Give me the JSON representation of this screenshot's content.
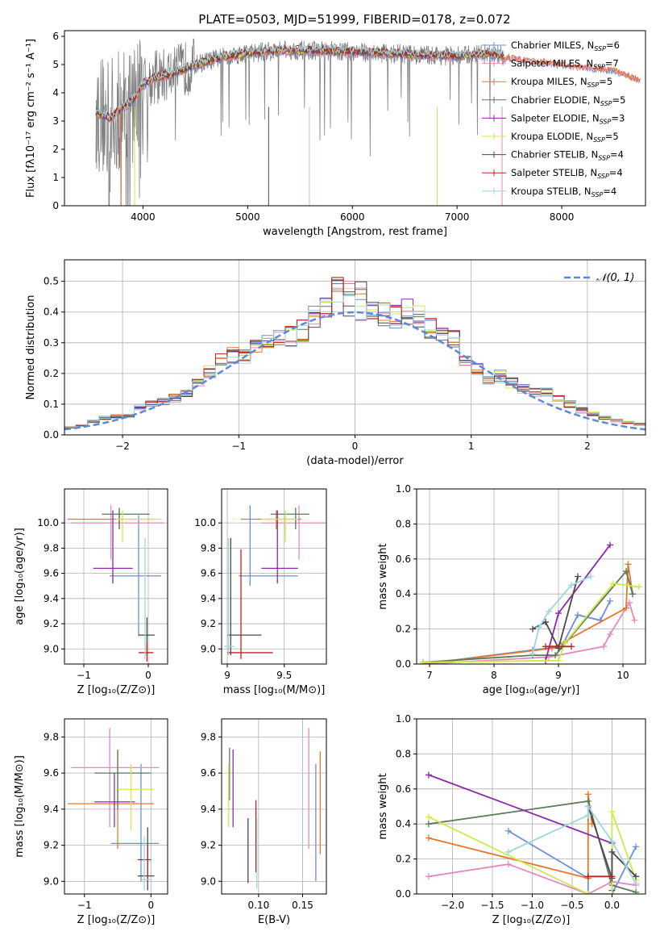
{
  "figure": {
    "title": "PLATE=0503, MJD=51999, FIBERID=0178, z=0.072"
  },
  "colors": {
    "Chabrier MILES": "#6a8fdc",
    "Salpeter MILES": "#e38bbd",
    "Kroupa MILES": "#e8772a",
    "Chabrier ELODIE": "#5a7a5a",
    "Salpeter ELODIE": "#8b2aa8",
    "Kroupa ELODIE": "#cfe84a",
    "Chabrier STELIB": "#4a4a4a",
    "Salpeter STELIB": "#b82424",
    "Kroupa STELIB": "#9fd6dc",
    "data": "#808080",
    "normal_curve": "#5b8bd6"
  },
  "chart_data": [
    {
      "id": "spectrum",
      "type": "line",
      "title": "PLATE=0503, MJD=51999, FIBERID=0178, z=0.072",
      "xlabel": "wavelength [Angstrom, rest frame]",
      "ylabel": "Flux [fλ10⁻¹⁷ erg cm⁻² s⁻¹ A⁻¹]",
      "xlim": [
        3250,
        8800
      ],
      "ylim": [
        0,
        6.2
      ],
      "xticks": [
        4000,
        5000,
        6000,
        7000,
        8000
      ],
      "yticks": [
        0,
        1,
        2,
        3,
        4,
        5,
        6
      ],
      "grid": false,
      "legend_position": "right",
      "legend": [
        {
          "label": "Chabrier MILES, N",
          "sub": "SSP",
          "tail": "=6",
          "key": "Chabrier MILES"
        },
        {
          "label": "Salpeter MILES, N",
          "sub": "SSP",
          "tail": "=7",
          "key": "Salpeter MILES"
        },
        {
          "label": "Kroupa MILES, N",
          "sub": "SSP",
          "tail": "=5",
          "key": "Kroupa MILES"
        },
        {
          "label": "Chabrier ELODIE, N",
          "sub": "SSP",
          "tail": "=5",
          "key": "Chabrier ELODIE"
        },
        {
          "label": "Salpeter ELODIE, N",
          "sub": "SSP",
          "tail": "=3",
          "key": "Salpeter ELODIE"
        },
        {
          "label": "Kroupa ELODIE, N",
          "sub": "SSP",
          "tail": "=5",
          "key": "Kroupa ELODIE"
        },
        {
          "label": "Chabrier STELIB, N",
          "sub": "SSP",
          "tail": "=4",
          "key": "Chabrier STELIB"
        },
        {
          "label": "Salpeter STELIB, N",
          "sub": "SSP",
          "tail": "=4",
          "key": "Salpeter STELIB"
        },
        {
          "label": "Kroupa STELIB, N",
          "sub": "SSP",
          "tail": "=4",
          "key": "Kroupa STELIB"
        }
      ],
      "continuum": [
        [
          3550,
          3.3
        ],
        [
          3700,
          3.1
        ],
        [
          3800,
          3.5
        ],
        [
          3900,
          3.7
        ],
        [
          4000,
          4.3
        ],
        [
          4100,
          4.5
        ],
        [
          4300,
          4.7
        ],
        [
          4500,
          5.0
        ],
        [
          4800,
          5.3
        ],
        [
          5000,
          5.4
        ],
        [
          5300,
          5.5
        ],
        [
          5600,
          5.5
        ],
        [
          6000,
          5.45
        ],
        [
          6300,
          5.4
        ],
        [
          6600,
          5.35
        ],
        [
          7000,
          5.3
        ],
        [
          7300,
          5.4
        ],
        [
          7450,
          5.3
        ]
      ],
      "model_continuum": [
        [
          7450,
          5.3
        ],
        [
          7800,
          5.15
        ],
        [
          8200,
          4.95
        ],
        [
          8500,
          4.85
        ],
        [
          8750,
          4.5
        ]
      ]
    },
    {
      "id": "residuals",
      "type": "line",
      "xlabel": "(data-model)/error",
      "ylabel": "Normed distribution",
      "xlim": [
        -2.5,
        2.5
      ],
      "ylim": [
        0,
        0.57
      ],
      "xticks": [
        -2,
        -1,
        0,
        1,
        2
      ],
      "yticks": [
        0.0,
        0.1,
        0.2,
        0.3,
        0.4,
        0.5
      ],
      "grid": true,
      "legend_position": "upper right",
      "legend_label": "𝒩(0, 1)",
      "bin_width": 0.1,
      "hist_centers": [
        -2.45,
        -2.35,
        -2.25,
        -2.15,
        -2.05,
        -1.95,
        -1.85,
        -1.75,
        -1.65,
        -1.55,
        -1.45,
        -1.35,
        -1.25,
        -1.15,
        -1.05,
        -0.95,
        -0.85,
        -0.75,
        -0.65,
        -0.55,
        -0.45,
        -0.35,
        -0.25,
        -0.15,
        -0.05,
        0.05,
        0.15,
        0.25,
        0.35,
        0.45,
        0.55,
        0.65,
        0.75,
        0.85,
        0.95,
        1.05,
        1.15,
        1.25,
        1.35,
        1.45,
        1.55,
        1.65,
        1.75,
        1.85,
        1.95,
        2.05,
        2.15,
        2.25,
        2.35,
        2.45
      ],
      "hist_mean": [
        0.025,
        0.03,
        0.045,
        0.055,
        0.06,
        0.065,
        0.09,
        0.1,
        0.11,
        0.12,
        0.14,
        0.17,
        0.21,
        0.24,
        0.26,
        0.25,
        0.28,
        0.3,
        0.31,
        0.32,
        0.34,
        0.38,
        0.42,
        0.46,
        0.45,
        0.44,
        0.4,
        0.39,
        0.39,
        0.4,
        0.38,
        0.35,
        0.32,
        0.31,
        0.25,
        0.22,
        0.18,
        0.19,
        0.17,
        0.15,
        0.14,
        0.14,
        0.12,
        0.1,
        0.08,
        0.07,
        0.055,
        0.045,
        0.04,
        0.035
      ]
    },
    {
      "id": "age-vs-Z",
      "type": "scatter",
      "xlabel": "Z [log₁₀(Z/Z⊙)]",
      "ylabel": "age  [log₁₀(age/yr)]",
      "xlim": [
        -1.3,
        0.3
      ],
      "ylim": [
        8.88,
        10.27
      ],
      "xticks": [
        -1,
        0
      ],
      "yticks": [
        9.0,
        9.2,
        9.4,
        9.6,
        9.8,
        10.0
      ],
      "grid": true,
      "points": [
        {
          "key": "Chabrier MILES",
          "x": -0.15,
          "y": 9.58,
          "xerr": [
            0.0,
            0.0
          ],
          "yerr": [
            0.48,
            0.48
          ],
          "xl": -0.6,
          "xr": 0.2
        },
        {
          "key": "Salpeter MILES",
          "x": -0.58,
          "y": 10.0,
          "xl": -1.2,
          "xr": 0.25,
          "yl": 9.71,
          "yh": 10.14
        },
        {
          "key": "Kroupa MILES",
          "x": -0.45,
          "y": 10.03,
          "xl": -1.25,
          "xr": 0.1,
          "yl": 9.95,
          "yh": 10.1
        },
        {
          "key": "Chabrier ELODIE",
          "x": -0.45,
          "y": 10.07,
          "xl": -0.72,
          "xr": 0.02,
          "yl": 9.95,
          "yh": 10.12
        },
        {
          "key": "Salpeter ELODIE",
          "x": -0.55,
          "y": 9.64,
          "xl": -0.85,
          "xr": -0.24,
          "yl": 9.52,
          "yh": 10.1
        },
        {
          "key": "Kroupa ELODIE",
          "x": -0.4,
          "y": 10.03,
          "xl": -0.5,
          "xr": 0.2,
          "yl": 9.85,
          "yh": 10.1
        },
        {
          "key": "Chabrier STELIB",
          "x": -0.02,
          "y": 9.11,
          "xl": -0.15,
          "xr": 0.1,
          "yl": 8.95,
          "yh": 9.25
        },
        {
          "key": "Salpeter STELIB",
          "x": -0.02,
          "y": 8.97,
          "xl": -0.15,
          "xr": 0.08,
          "yl": 8.9,
          "yh": 9.05
        },
        {
          "key": "Kroupa STELIB",
          "x": -0.05,
          "y": 9.58,
          "xl": -0.07,
          "xr": -0.03,
          "yl": 8.92,
          "yh": 9.88
        }
      ]
    },
    {
      "id": "age-vs-mass",
      "type": "scatter",
      "xlabel": "mass [log₁₀(M/M⊙)]",
      "xlim": [
        8.95,
        9.87
      ],
      "ylim": [
        8.88,
        10.27
      ],
      "xticks": [
        9.0,
        9.5
      ],
      "yticks": [
        9.0,
        9.2,
        9.4,
        9.6,
        9.8,
        10.0
      ],
      "grid": true,
      "points": [
        {
          "key": "Chabrier MILES",
          "x": 9.2,
          "y": 9.58,
          "xl": 9.1,
          "xr": 9.62,
          "yl": 9.5,
          "yh": 10.14
        },
        {
          "key": "Salpeter MILES",
          "x": 9.63,
          "y": 10.0,
          "xl": 9.3,
          "xr": 9.9,
          "yl": 9.71,
          "yh": 10.14
        },
        {
          "key": "Kroupa MILES",
          "x": 9.43,
          "y": 10.03,
          "xl": 9.12,
          "xr": 9.65,
          "yl": 9.95,
          "yh": 10.1
        },
        {
          "key": "Chabrier ELODIE",
          "x": 9.6,
          "y": 10.07,
          "xl": 9.38,
          "xr": 9.72,
          "yl": 9.95,
          "yh": 10.12
        },
        {
          "key": "Salpeter ELODIE",
          "x": 9.44,
          "y": 9.64,
          "xl": 9.3,
          "xr": 9.62,
          "yl": 9.52,
          "yh": 10.1
        },
        {
          "key": "Kroupa ELODIE",
          "x": 9.51,
          "y": 10.03,
          "xl": 9.3,
          "xr": 9.62,
          "yl": 9.85,
          "yh": 10.1
        },
        {
          "key": "Chabrier STELIB",
          "x": 9.03,
          "y": 9.11,
          "xl": 9.0,
          "xr": 9.3,
          "yl": 8.95,
          "yh": 9.88
        },
        {
          "key": "Salpeter STELIB",
          "x": 9.12,
          "y": 8.97,
          "xl": 9.0,
          "xr": 9.4,
          "yl": 8.92,
          "yh": 9.79
        },
        {
          "key": "Kroupa STELIB",
          "x": 9.01,
          "y": 9.02,
          "xl": 8.97,
          "xr": 9.06,
          "yl": 8.95,
          "yh": 9.88
        }
      ]
    },
    {
      "id": "massweight-vs-age",
      "type": "line",
      "xlabel": "age  [log₁₀(age/yr)]",
      "ylabel": "mass weight",
      "xlim": [
        6.8,
        10.35
      ],
      "ylim": [
        0,
        1.0
      ],
      "xticks": [
        7,
        8,
        9,
        10
      ],
      "yticks": [
        0.0,
        0.2,
        0.4,
        0.6,
        0.8,
        1.0
      ],
      "grid": true,
      "series": [
        {
          "key": "Chabrier MILES",
          "x": [
            6.9,
            8.6,
            9.05,
            9.3,
            9.65,
            9.8
          ],
          "y": [
            0.0,
            0.08,
            0.1,
            0.28,
            0.25,
            0.36
          ]
        },
        {
          "key": "Salpeter MILES",
          "x": [
            6.9,
            8.85,
            9.7,
            9.8,
            10.1,
            10.18
          ],
          "y": [
            0.0,
            0.04,
            0.1,
            0.17,
            0.35,
            0.25
          ]
        },
        {
          "key": "Kroupa MILES",
          "x": [
            6.9,
            8.9,
            10.05,
            10.08,
            10.15
          ],
          "y": [
            0.0,
            0.09,
            0.32,
            0.57,
            0.4
          ]
        },
        {
          "key": "Chabrier ELODIE",
          "x": [
            6.9,
            8.6,
            8.95,
            10.05,
            10.15
          ],
          "y": [
            0.01,
            0.05,
            0.05,
            0.53,
            0.4
          ]
        },
        {
          "key": "Salpeter ELODIE",
          "x": [
            8.8,
            9.0,
            9.8
          ],
          "y": [
            0.02,
            0.29,
            0.68
          ]
        },
        {
          "key": "Kroupa ELODIE",
          "x": [
            6.9,
            9.0,
            9.1,
            9.85,
            10.25
          ],
          "y": [
            0.01,
            0.02,
            0.12,
            0.46,
            0.44
          ]
        },
        {
          "key": "Chabrier STELIB",
          "x": [
            8.6,
            8.8,
            9.0,
            9.3
          ],
          "y": [
            0.2,
            0.24,
            0.09,
            0.5
          ]
        },
        {
          "key": "Salpeter STELIB",
          "x": [
            8.8,
            9.2
          ],
          "y": [
            0.1,
            0.1
          ]
        },
        {
          "key": "Kroupa STELIB",
          "x": [
            8.6,
            8.7,
            8.85,
            9.2,
            9.5
          ],
          "y": [
            0.06,
            0.21,
            0.3,
            0.45,
            0.5
          ]
        }
      ]
    },
    {
      "id": "mass-vs-Z",
      "type": "scatter",
      "xlabel": "Z [log₁₀(Z/Z⊙)]",
      "ylabel": "mass [log₁₀(M/M⊙)]",
      "xlim": [
        -1.3,
        0.25
      ],
      "ylim": [
        8.93,
        9.9
      ],
      "xticks": [
        -1,
        0
      ],
      "yticks": [
        9.0,
        9.2,
        9.4,
        9.6,
        9.8
      ],
      "grid": true,
      "points": [
        {
          "key": "Chabrier MILES",
          "x": -0.15,
          "y": 9.21,
          "xl": -0.6,
          "xr": 0.12,
          "yl": 9.0,
          "yh": 9.65
        },
        {
          "key": "Salpeter MILES",
          "x": -0.62,
          "y": 9.63,
          "xl": -1.2,
          "xr": 0.12,
          "yl": 9.3,
          "yh": 9.85
        },
        {
          "key": "Kroupa MILES",
          "x": -0.5,
          "y": 9.43,
          "xl": -1.25,
          "xr": 0.04,
          "yl": 9.18,
          "yh": 9.72
        },
        {
          "key": "Chabrier ELODIE",
          "x": -0.5,
          "y": 9.6,
          "xl": -0.85,
          "xr": 0.0,
          "yl": 9.4,
          "yh": 9.73
        },
        {
          "key": "Salpeter ELODIE",
          "x": -0.55,
          "y": 9.44,
          "xl": -0.85,
          "xr": -0.24,
          "yl": 9.3,
          "yh": 9.6
        },
        {
          "key": "Kroupa ELODIE",
          "x": -0.3,
          "y": 9.51,
          "xl": -0.5,
          "xr": 0.04,
          "yl": 9.28,
          "yh": 9.65
        },
        {
          "key": "Chabrier STELIB",
          "x": -0.05,
          "y": 9.03,
          "xl": -0.2,
          "xr": 0.05,
          "yl": 8.95,
          "yh": 9.3
        },
        {
          "key": "Salpeter STELIB",
          "x": -0.05,
          "y": 9.12,
          "xl": -0.2,
          "xr": 0.0,
          "yl": 9.0,
          "yh": 9.2
        },
        {
          "key": "Kroupa STELIB",
          "x": -0.1,
          "y": 9.01,
          "xl": -0.15,
          "xr": 0.0,
          "yl": 8.95,
          "yh": 9.25
        }
      ]
    },
    {
      "id": "mass-vs-ebv",
      "type": "scatter",
      "xlabel": "E(B-V)",
      "xlim": [
        0.058,
        0.177
      ],
      "ylim": [
        8.93,
        9.9
      ],
      "xticks": [
        0.1,
        0.15
      ],
      "yticks": [
        9.0,
        9.2,
        9.4,
        9.6,
        9.8
      ],
      "grid": true,
      "points": [
        {
          "key": "Chabrier MILES",
          "x": 0.165,
          "y": 9.21,
          "yl": 9.0,
          "yh": 9.65
        },
        {
          "key": "Salpeter MILES",
          "x": 0.157,
          "y": 9.63,
          "yl": 9.18,
          "yh": 9.85
        },
        {
          "key": "Kroupa MILES",
          "x": 0.17,
          "y": 9.43,
          "yl": 9.15,
          "yh": 9.72
        },
        {
          "key": "Chabrier ELODIE",
          "x": 0.067,
          "y": 9.6,
          "yl": 9.45,
          "yh": 9.74
        },
        {
          "key": "Salpeter ELODIE",
          "x": 0.071,
          "y": 9.44,
          "yl": 9.3,
          "yh": 9.73
        },
        {
          "key": "Kroupa ELODIE",
          "x": 0.066,
          "y": 9.51,
          "yl": 9.3,
          "yh": 9.65
        },
        {
          "key": "Chabrier STELIB",
          "x": 0.088,
          "y": 9.03,
          "yl": 8.99,
          "yh": 9.35
        },
        {
          "key": "Salpeter STELIB",
          "x": 0.097,
          "y": 9.12,
          "yl": 9.05,
          "yh": 9.45
        },
        {
          "key": "Kroupa STELIB",
          "x": 0.098,
          "y": 9.01,
          "yl": 8.96,
          "yh": 9.35
        }
      ]
    },
    {
      "id": "massweight-vs-Z",
      "type": "line",
      "xlabel": "Z [log₁₀(Z/Z⊙)]",
      "ylabel": "mass weight",
      "xlim": [
        -2.45,
        0.42
      ],
      "ylim": [
        0,
        1.0
      ],
      "xticks": [
        -2.0,
        -1.5,
        -1.0,
        -0.5,
        0.0
      ],
      "yticks": [
        0.0,
        0.2,
        0.4,
        0.6,
        0.8,
        1.0
      ],
      "grid": true,
      "series": [
        {
          "key": "Chabrier MILES",
          "x": [
            -1.3,
            -0.3,
            -0.3,
            0.0,
            0.3
          ],
          "y": [
            0.36,
            0.09,
            0.0,
            0.0,
            0.27
          ]
        },
        {
          "key": "Salpeter MILES",
          "x": [
            -2.3,
            -1.3,
            -0.3,
            0.0,
            0.3
          ],
          "y": [
            0.1,
            0.17,
            0.0,
            0.07,
            0.05
          ]
        },
        {
          "key": "Kroupa MILES",
          "x": [
            -2.3,
            -0.3,
            -0.3,
            -0.25
          ],
          "y": [
            0.32,
            0.09,
            0.57,
            0.4
          ]
        },
        {
          "key": "Chabrier ELODIE",
          "x": [
            -2.3,
            -0.3,
            0.0,
            0.3
          ],
          "y": [
            0.4,
            0.53,
            0.05,
            0.01
          ]
        },
        {
          "key": "Salpeter ELODIE",
          "x": [
            -2.3,
            0.0,
            0.0
          ],
          "y": [
            0.68,
            0.29,
            0.02
          ]
        },
        {
          "key": "Kroupa ELODIE",
          "x": [
            -2.3,
            -0.3,
            0.0,
            0.0,
            0.3
          ],
          "y": [
            0.44,
            0.0,
            0.0,
            0.47,
            0.08
          ]
        },
        {
          "key": "Chabrier STELIB",
          "x": [
            -0.3,
            0.0,
            0.0,
            0.3
          ],
          "y": [
            0.5,
            0.09,
            0.24,
            0.1
          ]
        },
        {
          "key": "Salpeter STELIB",
          "x": [
            -0.3,
            0.0
          ],
          "y": [
            0.1,
            0.1
          ]
        },
        {
          "key": "Kroupa STELIB",
          "x": [
            -1.3,
            -0.3,
            -0.3,
            0.0,
            0.3
          ],
          "y": [
            0.24,
            0.45,
            0.5,
            0.3,
            0.06
          ]
        }
      ]
    }
  ]
}
